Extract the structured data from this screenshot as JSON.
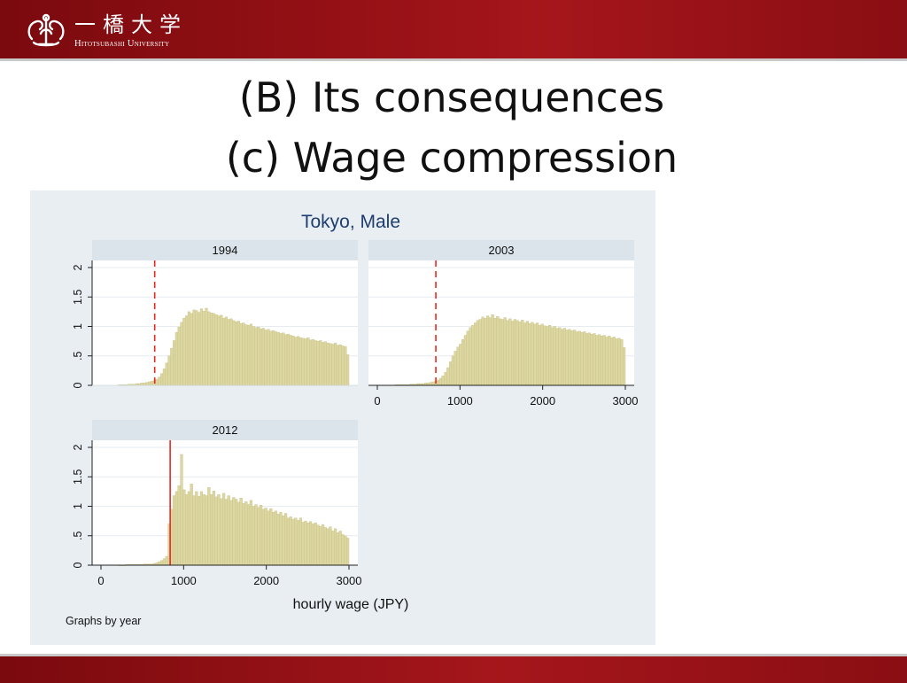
{
  "header": {
    "logo_name_ja": "一橋大学",
    "logo_name_en": "Hitotsubashi University"
  },
  "slide": {
    "title_line1": "(B) Its consequences",
    "title_line2": "(c) Wage compression"
  },
  "colors": {
    "banner": "#9a1217",
    "bar_fill": "#dcd6a0",
    "bar_edge": "#c8c189",
    "minwage_line": "#e8281e",
    "panel_bg": "#e8eef2",
    "plot_bg": "#ffffff",
    "strip_bg": "#dae4ea",
    "title_color": "#1f3d6e"
  },
  "chart_data": {
    "type": "bar",
    "title": "Tokyo, Male",
    "xlabel": "hourly wage (JPY)",
    "ylabel": "",
    "note": "Graphs by year",
    "xlim": [
      0,
      3000
    ],
    "ylim": [
      0,
      2
    ],
    "x_ticks": [
      "0",
      "1000",
      "2000",
      "3000"
    ],
    "y_ticks": [
      "0",
      ".5",
      "1",
      "1.5",
      "2"
    ],
    "grid": true,
    "bin_width": 30,
    "panels": [
      {
        "label": "1994",
        "min_wage": 650,
        "min_wage_style": "dashed",
        "x": [
          225,
          255,
          285,
          315,
          345,
          375,
          405,
          435,
          465,
          495,
          525,
          555,
          585,
          615,
          645,
          675,
          705,
          735,
          765,
          795,
          825,
          855,
          885,
          915,
          945,
          975,
          1005,
          1035,
          1065,
          1095,
          1125,
          1155,
          1185,
          1215,
          1245,
          1275,
          1305,
          1335,
          1365,
          1395,
          1425,
          1455,
          1485,
          1515,
          1545,
          1575,
          1605,
          1635,
          1665,
          1695,
          1725,
          1755,
          1785,
          1815,
          1845,
          1875,
          1905,
          1935,
          1965,
          1995,
          2025,
          2055,
          2085,
          2115,
          2145,
          2175,
          2205,
          2235,
          2265,
          2295,
          2325,
          2355,
          2385,
          2415,
          2445,
          2475,
          2505,
          2535,
          2565,
          2595,
          2625,
          2655,
          2685,
          2715,
          2745,
          2775,
          2805,
          2835,
          2865,
          2895,
          2925,
          2955,
          2985
        ],
        "values": [
          0.01,
          0.01,
          0.01,
          0.01,
          0.02,
          0.02,
          0.02,
          0.03,
          0.03,
          0.04,
          0.04,
          0.05,
          0.06,
          0.07,
          0.08,
          0.1,
          0.14,
          0.2,
          0.28,
          0.38,
          0.5,
          0.63,
          0.76,
          0.9,
          0.99,
          1.07,
          1.14,
          1.18,
          1.25,
          1.22,
          1.28,
          1.27,
          1.24,
          1.3,
          1.26,
          1.31,
          1.25,
          1.23,
          1.22,
          1.2,
          1.18,
          1.19,
          1.14,
          1.16,
          1.12,
          1.13,
          1.1,
          1.08,
          1.09,
          1.05,
          1.06,
          1.03,
          1.02,
          1.04,
          1.0,
          0.98,
          0.99,
          0.96,
          0.97,
          0.94,
          0.95,
          0.92,
          0.93,
          0.91,
          0.9,
          0.88,
          0.89,
          0.86,
          0.87,
          0.85,
          0.84,
          0.82,
          0.83,
          0.81,
          0.8,
          0.79,
          0.81,
          0.77,
          0.78,
          0.76,
          0.75,
          0.76,
          0.73,
          0.74,
          0.72,
          0.71,
          0.7,
          0.72,
          0.68,
          0.69,
          0.67,
          0.66,
          0.52
        ]
      },
      {
        "label": "2003",
        "min_wage": 708,
        "min_wage_style": "dashed",
        "x": [
          225,
          255,
          285,
          315,
          345,
          375,
          405,
          435,
          465,
          495,
          525,
          555,
          585,
          615,
          645,
          675,
          705,
          735,
          765,
          795,
          825,
          855,
          885,
          915,
          945,
          975,
          1005,
          1035,
          1065,
          1095,
          1125,
          1155,
          1185,
          1215,
          1245,
          1275,
          1305,
          1335,
          1365,
          1395,
          1425,
          1455,
          1485,
          1515,
          1545,
          1575,
          1605,
          1635,
          1665,
          1695,
          1725,
          1755,
          1785,
          1815,
          1845,
          1875,
          1905,
          1935,
          1965,
          1995,
          2025,
          2055,
          2085,
          2115,
          2145,
          2175,
          2205,
          2235,
          2265,
          2295,
          2325,
          2355,
          2385,
          2415,
          2445,
          2475,
          2505,
          2535,
          2565,
          2595,
          2625,
          2655,
          2685,
          2715,
          2745,
          2775,
          2805,
          2835,
          2865,
          2895,
          2925,
          2955,
          2985
        ],
        "values": [
          0.01,
          0.01,
          0.01,
          0.01,
          0.01,
          0.01,
          0.02,
          0.02,
          0.02,
          0.03,
          0.03,
          0.03,
          0.04,
          0.04,
          0.05,
          0.06,
          0.07,
          0.09,
          0.12,
          0.16,
          0.22,
          0.3,
          0.4,
          0.5,
          0.58,
          0.65,
          0.7,
          0.78,
          0.85,
          0.92,
          0.98,
          1.02,
          1.06,
          1.1,
          1.12,
          1.16,
          1.14,
          1.18,
          1.15,
          1.2,
          1.14,
          1.17,
          1.13,
          1.12,
          1.15,
          1.1,
          1.13,
          1.09,
          1.12,
          1.1,
          1.08,
          1.11,
          1.06,
          1.09,
          1.05,
          1.07,
          1.04,
          1.06,
          1.02,
          1.04,
          1.01,
          1.0,
          1.02,
          0.98,
          1.0,
          0.97,
          0.98,
          0.95,
          0.97,
          0.94,
          0.95,
          0.93,
          0.94,
          0.91,
          0.92,
          0.9,
          0.91,
          0.88,
          0.89,
          0.87,
          0.88,
          0.85,
          0.86,
          0.84,
          0.85,
          0.82,
          0.84,
          0.81,
          0.82,
          0.79,
          0.8,
          0.78,
          0.64
        ]
      },
      {
        "label": "2012",
        "min_wage": 837,
        "min_wage_style": "solid",
        "x": [
          225,
          255,
          285,
          315,
          345,
          375,
          405,
          435,
          465,
          495,
          525,
          555,
          585,
          615,
          645,
          675,
          705,
          735,
          765,
          795,
          825,
          855,
          885,
          915,
          945,
          975,
          1005,
          1035,
          1065,
          1095,
          1125,
          1155,
          1185,
          1215,
          1245,
          1275,
          1305,
          1335,
          1365,
          1395,
          1425,
          1455,
          1485,
          1515,
          1545,
          1575,
          1605,
          1635,
          1665,
          1695,
          1725,
          1755,
          1785,
          1815,
          1845,
          1875,
          1905,
          1935,
          1965,
          1995,
          2025,
          2055,
          2085,
          2115,
          2145,
          2175,
          2205,
          2235,
          2265,
          2295,
          2325,
          2355,
          2385,
          2415,
          2445,
          2475,
          2505,
          2535,
          2565,
          2595,
          2625,
          2655,
          2685,
          2715,
          2745,
          2775,
          2805,
          2835,
          2865,
          2895,
          2925,
          2955,
          2985
        ],
        "values": [
          0.0,
          0.0,
          0.0,
          0.01,
          0.01,
          0.01,
          0.01,
          0.01,
          0.01,
          0.01,
          0.02,
          0.02,
          0.02,
          0.02,
          0.03,
          0.04,
          0.06,
          0.08,
          0.11,
          0.15,
          0.7,
          0.95,
          1.18,
          1.25,
          1.35,
          1.88,
          1.28,
          1.2,
          1.25,
          1.38,
          1.18,
          1.25,
          1.17,
          1.25,
          1.2,
          1.18,
          1.32,
          1.2,
          1.26,
          1.16,
          1.2,
          1.13,
          1.22,
          1.12,
          1.18,
          1.1,
          1.15,
          1.12,
          1.07,
          1.14,
          1.05,
          1.08,
          1.03,
          1.1,
          1.0,
          1.03,
          0.98,
          1.02,
          0.95,
          0.97,
          0.92,
          0.96,
          0.9,
          0.92,
          0.87,
          0.9,
          0.84,
          0.88,
          0.8,
          0.82,
          0.78,
          0.8,
          0.76,
          0.8,
          0.73,
          0.75,
          0.72,
          0.74,
          0.7,
          0.72,
          0.68,
          0.66,
          0.69,
          0.64,
          0.62,
          0.65,
          0.58,
          0.62,
          0.55,
          0.58,
          0.52,
          0.5,
          0.46
        ]
      }
    ]
  }
}
